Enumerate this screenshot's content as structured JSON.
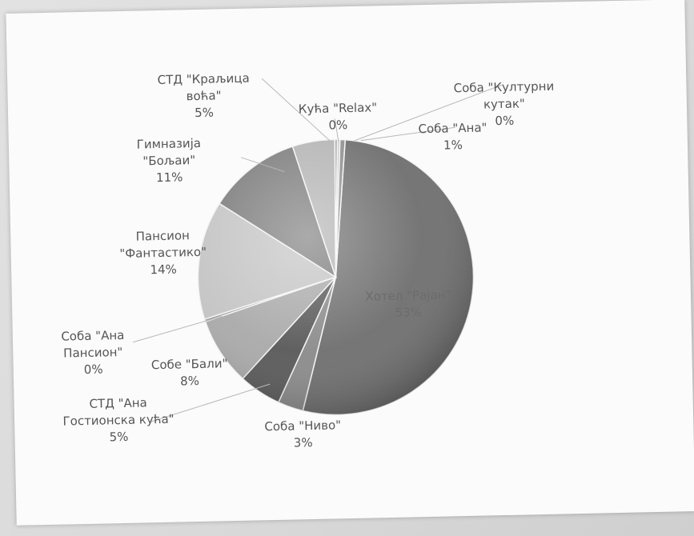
{
  "chart_data": {
    "type": "pie",
    "style": "3d-shaded, grayscale",
    "legend": "none",
    "slices": [
      {
        "label": "Хотел \"Рајан\"",
        "percent_label": "53%",
        "value": 53,
        "color": "#6e6e6e"
      },
      {
        "label": "Соба \"Ниво\"",
        "percent_label": "3%",
        "value": 3,
        "color": "#8a8a8a"
      },
      {
        "label": "СТД \"Ана Гостионска кућа\"",
        "percent_label": "5%",
        "value": 5,
        "color": "#585858"
      },
      {
        "label": "Собе \"Бали\"",
        "percent_label": "8%",
        "value": 8,
        "color": "#a9a9a9"
      },
      {
        "label": "Соба \"Ана Пансион\"",
        "percent_label": "0%",
        "value": 0.3,
        "color": "#9a9a9a"
      },
      {
        "label": "Пансион \"Фантастико\"",
        "percent_label": "14%",
        "value": 14,
        "color": "#c4c4c4"
      },
      {
        "label": "Гимназија \"Бољаи\"",
        "percent_label": "11%",
        "value": 11,
        "color": "#7d7d7d"
      },
      {
        "label": "СТД \"Краљица воћа\"",
        "percent_label": "5%",
        "value": 5,
        "color": "#b4b4b4"
      },
      {
        "label": "Кућа \"Relax\"",
        "percent_label": "0%",
        "value": 0.3,
        "color": "#9c9c9c"
      },
      {
        "label": "Соба \"Културни кутак\"",
        "percent_label": "0%",
        "value": 0.3,
        "color": "#c8c8c8"
      },
      {
        "label": "Соба \"Ана\"",
        "percent_label": "1%",
        "value": 0.6,
        "color": "#8f8f8f"
      }
    ],
    "label_lines": {
      "hotel": [
        "Хотел \"Рајан\"",
        "53%"
      ],
      "nivo": [
        "Соба \"Ниво\"",
        "3%"
      ],
      "std_ana": [
        "СТД \"Ана",
        "Гостионска кућа\"",
        "5%"
      ],
      "bali": [
        "Собе \"Бали\"",
        "8%"
      ],
      "ana_pansion": [
        "Соба \"Ана",
        "Пансион\"",
        "0%"
      ],
      "fantastiko": [
        "Пансион",
        "\"Фантастико\"",
        "14%"
      ],
      "boljai": [
        "Гимназија",
        "\"Бољаи\"",
        "11%"
      ],
      "kraljica": [
        "СТД \"Краљица",
        "воћа\"",
        "5%"
      ],
      "relax": [
        "Кућа \"Relax\"",
        "0%"
      ],
      "kulturni": [
        "Соба \"Културни",
        "кутак\"",
        "0%"
      ],
      "ana": [
        "Соба \"Ана\"",
        "1%"
      ]
    }
  }
}
